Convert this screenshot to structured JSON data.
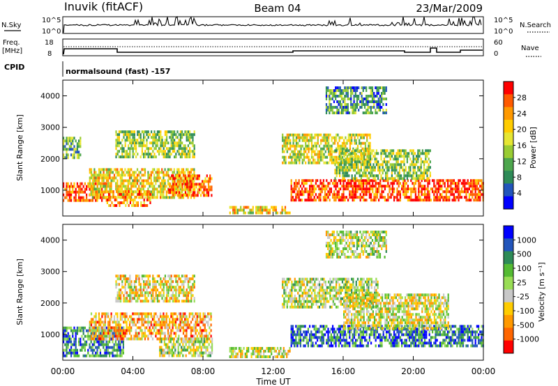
{
  "header": {
    "station": "Inuvik (fitACF)",
    "beam": "Beam 04",
    "date": "23/Mar/2009"
  },
  "summary_panels": {
    "nsky_label": "N.Sky",
    "nsky_ticks": [
      "10^5",
      "10^0"
    ],
    "nsearch_label": "N.Search",
    "nsearch_ticks": [
      "10^5",
      "10^0"
    ],
    "freq_label": "Freq.",
    "freq_unit": "[MHz]",
    "freq_ticks": [
      "18",
      "8"
    ],
    "nave_label": "Nave",
    "nave_ticks": [
      "60",
      "0"
    ],
    "cpid_label": "CPID",
    "cpid_value": "normalsound (fast) -157"
  },
  "chart_data": [
    {
      "type": "heatmap",
      "name": "power",
      "xlabel": "Time UT",
      "ylabel": "Slant Range [km]",
      "xticks": [
        "00:00",
        "04:00",
        "08:00",
        "12:00",
        "16:00",
        "20:00",
        "00:00"
      ],
      "xlim_hours": [
        0,
        24
      ],
      "yticks": [
        1000,
        2000,
        3000,
        4000
      ],
      "ylim": [
        180,
        4500
      ],
      "colorbar_label": "Power [dB]",
      "colorbar_ticks": [
        "28",
        "24",
        "20",
        "16",
        "12",
        "8",
        "4"
      ],
      "colorbar_colors": [
        "#ff0000",
        "#ff5a00",
        "#ff9900",
        "#ffcc00",
        "#e6e633",
        "#99cc33",
        "#4da64d",
        "#2e8b57",
        "#2255bb",
        "#0000ff"
      ],
      "regions": [
        {
          "t0": 0.0,
          "t1": 2.5,
          "r0": 700,
          "r1": 1250,
          "level": 0.85
        },
        {
          "t0": 1.5,
          "t1": 7.5,
          "r0": 800,
          "r1": 1700,
          "level": 0.6
        },
        {
          "t0": 2.5,
          "t1": 5.0,
          "r0": 500,
          "r1": 1000,
          "level": 0.75
        },
        {
          "t0": 6.0,
          "t1": 8.5,
          "r0": 800,
          "r1": 1500,
          "level": 0.8
        },
        {
          "t0": 3.0,
          "t1": 7.5,
          "r0": 2100,
          "r1": 2900,
          "level": 0.45
        },
        {
          "t0": 0.0,
          "t1": 1.0,
          "r0": 2000,
          "r1": 2700,
          "level": 0.35
        },
        {
          "t0": 9.5,
          "t1": 13.0,
          "r0": 250,
          "r1": 500,
          "level": 0.6
        },
        {
          "t0": 13.0,
          "t1": 24.0,
          "r0": 700,
          "r1": 1350,
          "level": 0.9
        },
        {
          "t0": 12.5,
          "t1": 17.5,
          "r0": 1900,
          "r1": 2800,
          "level": 0.55
        },
        {
          "t0": 15.5,
          "t1": 21.0,
          "r0": 1400,
          "r1": 2300,
          "level": 0.45
        },
        {
          "t0": 15.0,
          "t1": 18.5,
          "r0": 3500,
          "r1": 4300,
          "level": 0.3
        }
      ]
    },
    {
      "type": "heatmap",
      "name": "velocity",
      "xlabel": "Time UT",
      "ylabel": "Slant Range [km]",
      "xticks": [
        "00:00",
        "04:00",
        "08:00",
        "12:00",
        "16:00",
        "20:00",
        "00:00"
      ],
      "xlim_hours": [
        0,
        24
      ],
      "yticks": [
        1000,
        2000,
        3000,
        4000
      ],
      "ylim": [
        180,
        4500
      ],
      "colorbar_label": "Velocity [m s⁻¹]",
      "colorbar_ticks": [
        "1000",
        "500",
        "100",
        "25",
        "-25",
        "-100",
        "-500",
        "-1000"
      ],
      "colorbar_colors": [
        "#0000ff",
        "#2255bb",
        "#2e8b57",
        "#55bb33",
        "#99dd55",
        "#c8c8c8",
        "#ffcc00",
        "#ff9900",
        "#ff6600",
        "#ff0000"
      ],
      "regions": [
        {
          "t0": 0.0,
          "t1": 3.5,
          "r0": 300,
          "r1": 1250,
          "level": 0.75
        },
        {
          "t0": 1.5,
          "t1": 8.5,
          "r0": 900,
          "r1": 1700,
          "level": 0.3
        },
        {
          "t0": 5.5,
          "t1": 8.5,
          "r0": 300,
          "r1": 900,
          "level": 0.5
        },
        {
          "t0": 3.0,
          "t1": 7.5,
          "r0": 2100,
          "r1": 2900,
          "level": 0.4
        },
        {
          "t0": 9.5,
          "t1": 13.0,
          "r0": 250,
          "r1": 600,
          "level": 0.45
        },
        {
          "t0": 13.0,
          "t1": 24.0,
          "r0": 600,
          "r1": 1300,
          "level": 0.8
        },
        {
          "t0": 12.5,
          "t1": 18.0,
          "r0": 1900,
          "r1": 2800,
          "level": 0.5
        },
        {
          "t0": 16.0,
          "t1": 22.0,
          "r0": 1200,
          "r1": 2300,
          "level": 0.45
        },
        {
          "t0": 15.0,
          "t1": 18.5,
          "r0": 3500,
          "r1": 4300,
          "level": 0.5
        }
      ]
    }
  ]
}
